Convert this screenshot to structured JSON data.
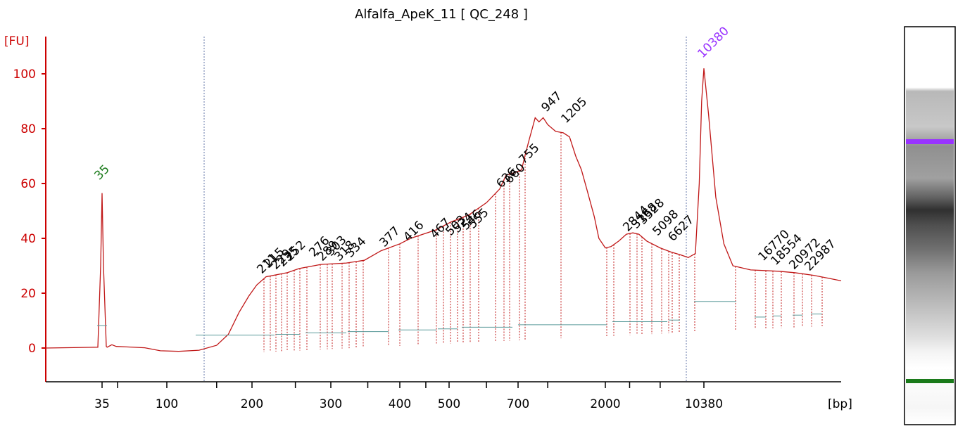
{
  "chart_data": {
    "type": "line",
    "title": "Alfalfa_ApeK_11  [ QC_248 ]",
    "ylabel": "[FU]",
    "xlabel": "[bp]",
    "ylim": [
      -10,
      110
    ],
    "yticks": [
      0,
      20,
      40,
      60,
      80,
      100
    ],
    "xtick_labels": [
      "35",
      "100",
      "200",
      "300",
      "400",
      "500",
      "700",
      "2000",
      "10380"
    ],
    "grid": false,
    "colors": {
      "trace": "#c01818",
      "axis": "#cc0000",
      "lower_marker": "#1a7a1a",
      "upper_marker": "#9933ff",
      "text": "#000000",
      "baseline": "#5a9a9a"
    },
    "marker_peaks": [
      {
        "name": "35",
        "size_bp": 35,
        "fu": 56.5,
        "role": "lower marker"
      },
      {
        "name": "10380",
        "size_bp": 10380,
        "fu": 102,
        "role": "upper marker"
      }
    ],
    "peak_labels": [
      "211",
      "215",
      "229",
      "235",
      "252",
      "276",
      "289",
      "303",
      "318",
      "334",
      "377",
      "416",
      "467",
      "503",
      "524",
      "546",
      "555",
      "636",
      "660",
      "755",
      "947",
      "1205",
      "2844",
      "3168",
      "3528",
      "5098",
      "6627",
      "16770",
      "18554",
      "20972",
      "22987"
    ],
    "trace_points": [
      [
        35,
        0.3
      ],
      [
        38,
        0.3
      ],
      [
        41,
        1.2
      ],
      [
        44,
        0.6
      ],
      [
        52,
        0.4
      ],
      [
        70,
        0.1
      ],
      [
        90,
        -1.0
      ],
      [
        110,
        -1.2
      ],
      [
        130,
        -0.8
      ],
      [
        150,
        1.0
      ],
      [
        165,
        5.0
      ],
      [
        180,
        13.0
      ],
      [
        195,
        19.0
      ],
      [
        205,
        23.0
      ],
      [
        215,
        26.0
      ],
      [
        240,
        27.5
      ],
      [
        255,
        29.0
      ],
      [
        285,
        30.5
      ],
      [
        320,
        31.0
      ],
      [
        345,
        32.0
      ],
      [
        370,
        35.5
      ],
      [
        400,
        38.0
      ],
      [
        420,
        40.0
      ],
      [
        470,
        43.0
      ],
      [
        505,
        46.0
      ],
      [
        550,
        48.5
      ],
      [
        600,
        53.0
      ],
      [
        640,
        58.0
      ],
      [
        660,
        63.0
      ],
      [
        690,
        64.0
      ],
      [
        730,
        65.0
      ],
      [
        760,
        70.0
      ],
      [
        800,
        76.0
      ],
      [
        830,
        80.0
      ],
      [
        860,
        84.0
      ],
      [
        900,
        82.5
      ],
      [
        947,
        84.0
      ],
      [
        1000,
        81.5
      ],
      [
        1100,
        79.0
      ],
      [
        1205,
        78.5
      ],
      [
        1300,
        77.0
      ],
      [
        1400,
        70.0
      ],
      [
        1500,
        65.0
      ],
      [
        1600,
        58.0
      ],
      [
        1750,
        48.0
      ],
      [
        1850,
        40.0
      ],
      [
        2000,
        36.5
      ],
      [
        2200,
        37.0
      ],
      [
        2500,
        39.0
      ],
      [
        2844,
        41.5
      ],
      [
        3168,
        42.0
      ],
      [
        3500,
        41.5
      ],
      [
        4000,
        39.0
      ],
      [
        5000,
        36.5
      ],
      [
        6000,
        35.0
      ],
      [
        7000,
        34.0
      ],
      [
        8000,
        33.0
      ],
      [
        9000,
        34.5
      ],
      [
        9600,
        60.0
      ],
      [
        10000,
        90.0
      ],
      [
        10380,
        102.0
      ],
      [
        10700,
        85.0
      ],
      [
        11200,
        55.0
      ],
      [
        11800,
        38.0
      ],
      [
        12500,
        30.0
      ],
      [
        14000,
        28.5
      ],
      [
        16770,
        28.0
      ],
      [
        18554,
        27.5
      ],
      [
        20972,
        26.5
      ],
      [
        22987,
        25.5
      ],
      [
        25000,
        24.5
      ]
    ]
  }
}
